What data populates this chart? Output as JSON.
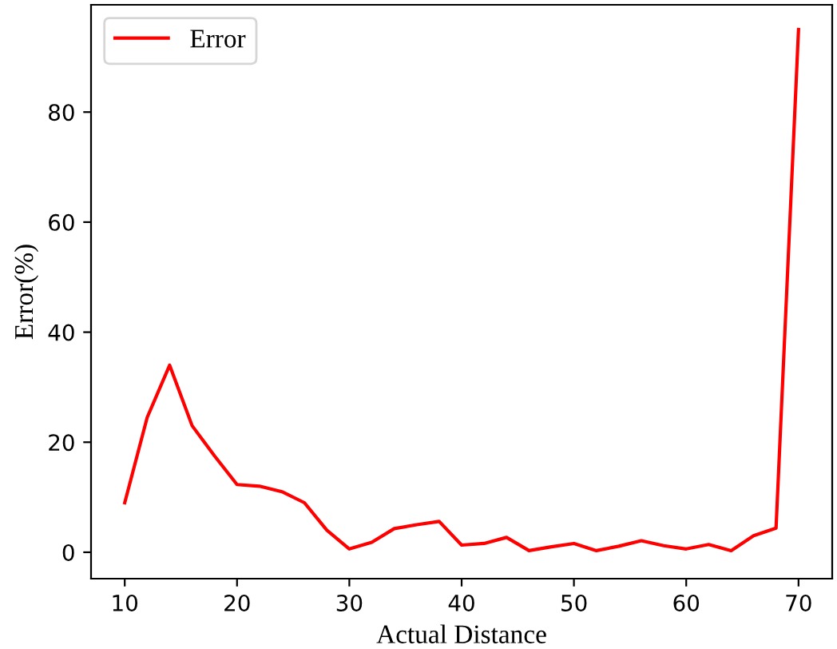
{
  "chart_data": {
    "type": "line",
    "xlabel": "Actual Distance",
    "ylabel": "Error(%)",
    "x": [
      10,
      12,
      14,
      16,
      18,
      20,
      22,
      24,
      26,
      28,
      30,
      32,
      34,
      36,
      38,
      40,
      42,
      44,
      46,
      48,
      50,
      52,
      54,
      56,
      58,
      60,
      62,
      64,
      66,
      68,
      70
    ],
    "series": [
      {
        "name": "Error",
        "color": "#ff0000",
        "values": [
          9,
          24.5,
          34,
          23,
          17.5,
          12.3,
          12,
          11,
          9,
          4,
          0.6,
          1.8,
          4.3,
          5,
          5.6,
          1.3,
          1.6,
          2.7,
          0.3,
          1,
          1.6,
          0.3,
          1.1,
          2.1,
          1.2,
          0.6,
          1.4,
          0.3,
          3,
          4.4,
          95
        ]
      }
    ],
    "xlim": [
      7,
      73
    ],
    "ylim": [
      -4.8,
      99.5
    ],
    "xticks": [
      10,
      20,
      30,
      40,
      50,
      60,
      70
    ],
    "yticks": [
      0,
      20,
      40,
      60,
      80
    ],
    "legend": "top left",
    "grid": false,
    "marker": "none",
    "line_style": "solid"
  }
}
